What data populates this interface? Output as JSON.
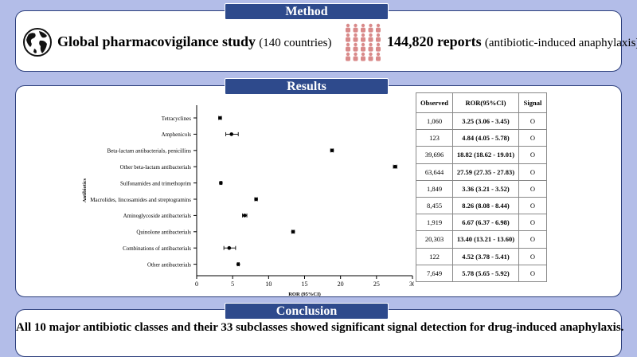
{
  "method": {
    "title": "Method",
    "study_bold": "Global pharmacovigilance study",
    "study_sub": "(140 countries)",
    "reports_bold": "144,820 reports",
    "reports_sub": "(antibiotic-induced anaphylaxis)",
    "icons": [
      "globe-icon",
      "people-crowd-icon"
    ],
    "accent_color": "#d98a8a"
  },
  "results": {
    "title": "Results",
    "table_headers": [
      "Observed",
      "ROR(95%CI)",
      "Signal"
    ]
  },
  "chart_data": {
    "type": "scatter",
    "orientation": "horizontal-forest",
    "ylabel": "Antibiotics",
    "xlabel": "ROR (95%CI)",
    "xlim": [
      0,
      30
    ],
    "xticks": [
      0,
      5,
      10,
      15,
      20,
      25,
      30
    ],
    "grid": false,
    "categories": [
      "Tetracyclines",
      "Amphenicols",
      "Beta-lactam antibacterials, penicillins",
      "Other beta-lactam antibacterials",
      "Sulfonamides and trimethoprim",
      "Macrolides, lincosamides and streptogramins",
      "Aminoglycoside antibacterials",
      "Quinolone antibacterials",
      "Combinations of antibacterials",
      "Other antibacterials"
    ],
    "ror": [
      3.25,
      4.84,
      18.82,
      27.59,
      3.36,
      8.26,
      6.67,
      13.4,
      4.52,
      5.78
    ],
    "ci_low": [
      3.06,
      4.05,
      18.62,
      27.35,
      3.21,
      8.08,
      6.37,
      13.21,
      3.78,
      5.65
    ],
    "ci_high": [
      3.45,
      5.78,
      19.01,
      27.83,
      3.52,
      8.44,
      6.98,
      13.6,
      5.41,
      5.92
    ],
    "observed": [
      "1,060",
      "123",
      "39,696",
      "63,644",
      "1,849",
      "8,455",
      "1,919",
      "20,303",
      "122",
      "7,649"
    ],
    "ror_text": [
      "3.25 (3.06 - 3.45)",
      "4.84 (4.05 - 5.78)",
      "18.82 (18.62 - 19.01)",
      "27.59 (27.35 - 27.83)",
      "3.36 (3.21 - 3.52)",
      "8.26 (8.08 - 8.44)",
      "6.67 (6.37 - 6.98)",
      "13.40 (13.21 - 13.60)",
      "4.52 (3.78 - 5.41)",
      "5.78 (5.65 - 5.92)"
    ],
    "signal": [
      "O",
      "O",
      "O",
      "O",
      "O",
      "O",
      "O",
      "O",
      "O",
      "O"
    ]
  },
  "conclusion": {
    "title": "Conclusion",
    "text": "All 10 major antibiotic classes and their 33 subclasses showed significant signal detection for drug-induced anaphylaxis."
  }
}
